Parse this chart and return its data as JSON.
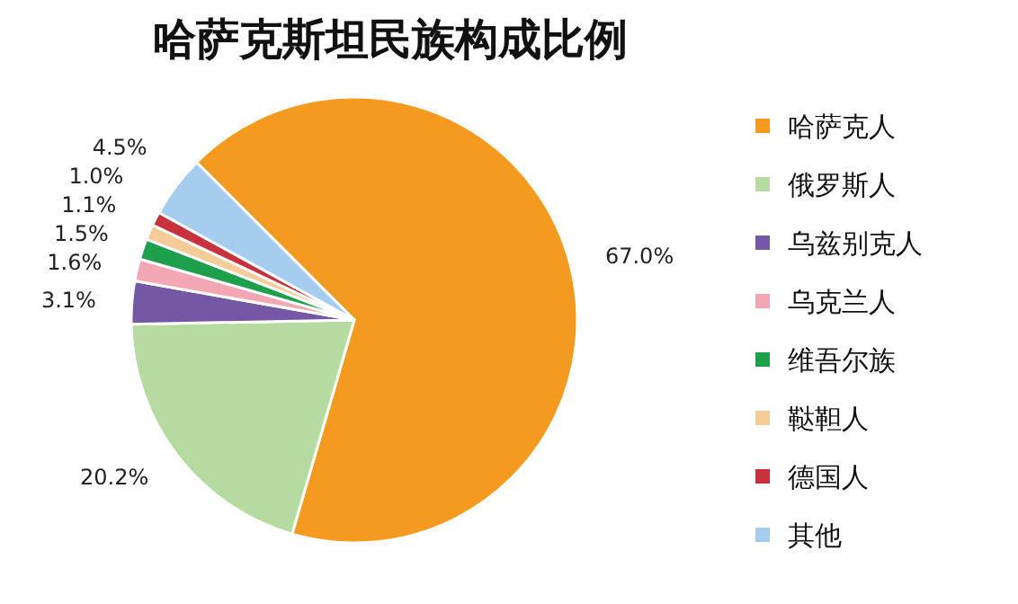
{
  "chart_data": {
    "type": "pie",
    "title": "哈萨克斯坦民族构成比例",
    "categories": [
      "哈萨克人",
      "俄罗斯人",
      "乌兹别克人",
      "乌克兰人",
      "维吾尔族",
      "鞑靼人",
      "德国人",
      "其他"
    ],
    "values": [
      67.0,
      20.2,
      3.1,
      1.6,
      1.5,
      1.1,
      1.0,
      4.5
    ],
    "value_labels": [
      "67.0%",
      "20.2%",
      "3.1%",
      "1.6%",
      "1.5%",
      "1.1%",
      "1.0%",
      "4.5%"
    ],
    "colors": [
      "#f39a1f",
      "#b6dba0",
      "#7458a6",
      "#f3a6b3",
      "#1d9f4c",
      "#f4cc98",
      "#c8323c",
      "#a6cdf0"
    ],
    "legend": "right"
  }
}
